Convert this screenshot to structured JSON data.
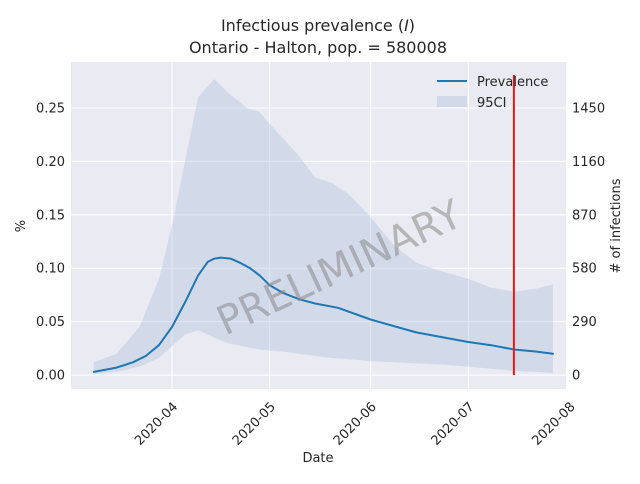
{
  "chart_data": {
    "type": "line",
    "title_line1_prefix": "Infectious prevalence (",
    "title_line1_var": "I",
    "title_line1_suffix": ")",
    "title_line2": "Ontario - Halton, pop. = 580008",
    "xlabel": "Date",
    "ylabel": "%",
    "ylabel_right": "# of infections",
    "watermark": "PRELIMINARY",
    "x_ticks": [
      "2020-04",
      "2020-05",
      "2020-06",
      "2020-07",
      "2020-08"
    ],
    "y_ticks": [
      "0.00",
      "0.05",
      "0.10",
      "0.15",
      "0.20",
      "0.25"
    ],
    "y_ticks_right": [
      "0",
      "290",
      "580",
      "870",
      "1160",
      "1450"
    ],
    "ylim": [
      -0.013,
      0.293
    ],
    "xlim": [
      "2020-03-01",
      "2020-07-31"
    ],
    "grid": true,
    "legend_position": "top-right",
    "colors": {
      "line": "#1f77b4",
      "band": "#b0c4de",
      "vline": "#e31a1c",
      "background": "#eaeaf2"
    },
    "vline_date": "2020-07-15",
    "series": [
      {
        "name": "Prevalence",
        "x": [
          "2020-03-08",
          "2020-03-15",
          "2020-03-20",
          "2020-03-24",
          "2020-03-28",
          "2020-04-01",
          "2020-04-05",
          "2020-04-09",
          "2020-04-12",
          "2020-04-14",
          "2020-04-16",
          "2020-04-19",
          "2020-04-22",
          "2020-04-25",
          "2020-04-28",
          "2020-05-01",
          "2020-05-05",
          "2020-05-10",
          "2020-05-15",
          "2020-05-22",
          "2020-06-01",
          "2020-06-08",
          "2020-06-15",
          "2020-06-22",
          "2020-07-01",
          "2020-07-08",
          "2020-07-15",
          "2020-07-22",
          "2020-07-27"
        ],
        "values": [
          0.003,
          0.007,
          0.012,
          0.018,
          0.028,
          0.045,
          0.068,
          0.093,
          0.106,
          0.109,
          0.11,
          0.109,
          0.105,
          0.1,
          0.093,
          0.084,
          0.077,
          0.071,
          0.067,
          0.063,
          0.052,
          0.046,
          0.04,
          0.036,
          0.031,
          0.028,
          0.024,
          0.022,
          0.02
        ]
      },
      {
        "name": "95CI",
        "x": [
          "2020-03-08",
          "2020-03-15",
          "2020-03-22",
          "2020-03-28",
          "2020-04-01",
          "2020-04-05",
          "2020-04-09",
          "2020-04-14",
          "2020-04-18",
          "2020-04-24",
          "2020-04-28",
          "2020-05-01",
          "2020-05-05",
          "2020-05-10",
          "2020-05-15",
          "2020-05-20",
          "2020-05-25",
          "2020-06-01",
          "2020-06-08",
          "2020-06-15",
          "2020-06-22",
          "2020-07-01",
          "2020-07-08",
          "2020-07-15",
          "2020-07-22",
          "2020-07-27"
        ],
        "lower": [
          0.001,
          0.003,
          0.008,
          0.016,
          0.027,
          0.038,
          0.042,
          0.035,
          0.03,
          0.026,
          0.024,
          0.023,
          0.022,
          0.02,
          0.018,
          0.016,
          0.015,
          0.013,
          0.012,
          0.011,
          0.01,
          0.008,
          0.006,
          0.004,
          0.003,
          0.002
        ],
        "upper": [
          0.012,
          0.02,
          0.045,
          0.09,
          0.14,
          0.2,
          0.26,
          0.277,
          0.265,
          0.25,
          0.246,
          0.235,
          0.222,
          0.205,
          0.185,
          0.18,
          0.17,
          0.148,
          0.122,
          0.105,
          0.098,
          0.09,
          0.082,
          0.078,
          0.081,
          0.085
        ]
      }
    ]
  }
}
